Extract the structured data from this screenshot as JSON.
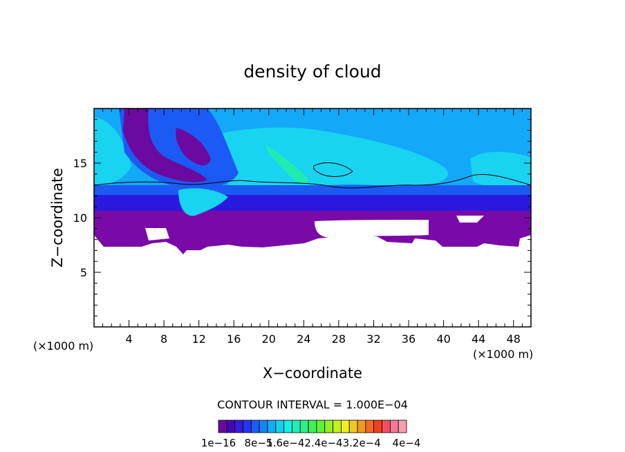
{
  "chart_data": {
    "type": "heatmap",
    "title": "density of cloud",
    "xlabel": "X−coordinate",
    "ylabel": "Z−coordinate",
    "x_unit_left": "(×1000 m)",
    "x_unit_right": "(×1000 m)",
    "xlim": [
      0,
      50
    ],
    "ylim": [
      0,
      20
    ],
    "x_ticks": [
      4,
      8,
      12,
      16,
      20,
      24,
      28,
      32,
      36,
      40,
      44,
      48
    ],
    "y_ticks": [
      5,
      10,
      15
    ],
    "contour_interval_label": "CONTOUR INTERVAL = 1.000E−04",
    "colorbar_labels": [
      "1e−16",
      "8e−5",
      "1.6e−42.4e−43.2e−4",
      "4e−4"
    ],
    "colorbar_colors": [
      "#6a0a9c",
      "#4a00b4",
      "#3a1adc",
      "#2436f0",
      "#1a5cf4",
      "#1486f4",
      "#12aef4",
      "#14d0ee",
      "#18eee4",
      "#20f0b8",
      "#2cf088",
      "#40f05a",
      "#64f036",
      "#94f024",
      "#c4f020",
      "#eeee20",
      "#f0c820",
      "#f09a20",
      "#f06a20",
      "#f04020",
      "#f05060",
      "#f47898",
      "#f4a0b0"
    ],
    "regions": [
      {
        "level": "violet",
        "color": "#7a0aa8",
        "x": [
          0,
          50
        ],
        "z": [
          7.5,
          10
        ]
      },
      {
        "level": "deep-blue",
        "color": "#2a1ae0",
        "x": [
          0,
          50
        ],
        "z": [
          10,
          11.5
        ]
      },
      {
        "level": "blue",
        "color": "#1c5af4",
        "x": [
          0,
          50
        ],
        "z": [
          11.5,
          12.3
        ]
      },
      {
        "level": "sky",
        "color": "#14a8f8",
        "x": [
          0,
          50
        ],
        "z": [
          12.3,
          20
        ]
      },
      {
        "level": "cyan",
        "color": "#18d4f0",
        "x": [
          14,
          36
        ],
        "z": [
          13,
          18
        ]
      },
      {
        "level": "green",
        "color": "#20ecb0",
        "x": [
          19,
          24
        ],
        "z": [
          13.5,
          16.5
        ]
      }
    ]
  }
}
